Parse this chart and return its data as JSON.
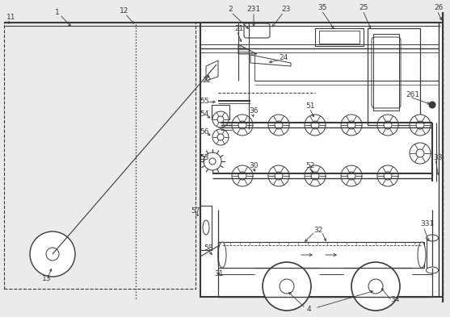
{
  "bg_color": "#ebebeb",
  "line_color": "#3a3a3a",
  "fig_width": 5.57,
  "fig_height": 3.93,
  "dpi": 100
}
